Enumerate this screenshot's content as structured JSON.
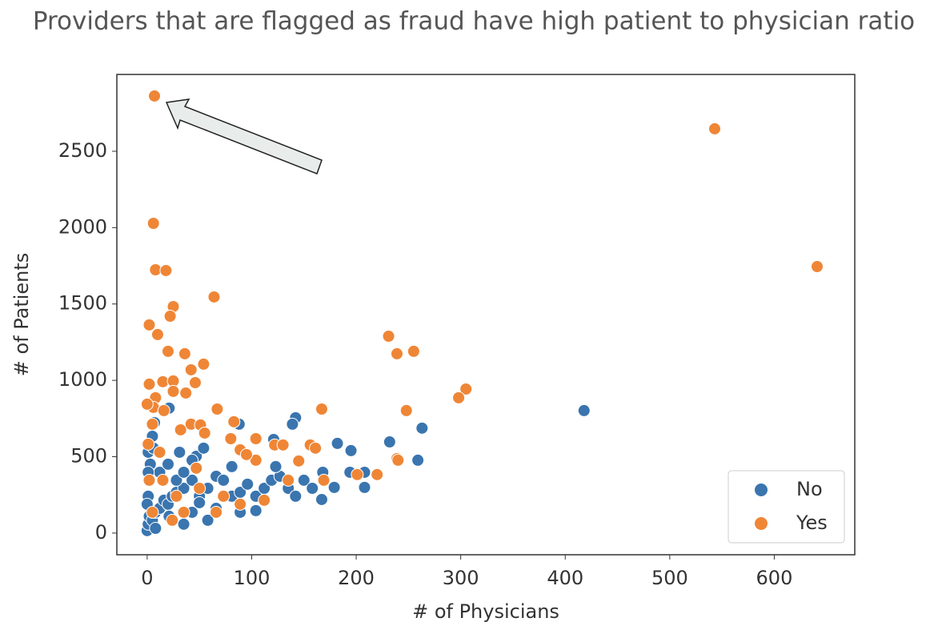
{
  "chart_data": {
    "type": "scatter",
    "title": "Providers that are flagged as fraud have high patient to physician ratio",
    "x_label": "# of Physicians",
    "y_label": "# of Patients",
    "xlim": [
      -29,
      677
    ],
    "ylim": [
      -142,
      3003
    ],
    "xticks": [
      0,
      100,
      200,
      300,
      400,
      500,
      600
    ],
    "yticks": [
      0,
      500,
      1000,
      1500,
      2000,
      2500
    ],
    "legend": "lower right",
    "series": [
      {
        "name": "No",
        "color": "#3a75af",
        "x": [
          418,
          263,
          259,
          232,
          88,
          142,
          139,
          121,
          182,
          195,
          7,
          21,
          208,
          179,
          167,
          194,
          168,
          208,
          47,
          31,
          1,
          5,
          0,
          1,
          2,
          5,
          8,
          12,
          16,
          20,
          24,
          28,
          35,
          43,
          50,
          58,
          66,
          73,
          81,
          89,
          96,
          104,
          112,
          119,
          127,
          135,
          142,
          150,
          158,
          1,
          2,
          3,
          6,
          12,
          20,
          28,
          35,
          43,
          54,
          21,
          43,
          66,
          89,
          104,
          58,
          35,
          8,
          50,
          123,
          81,
          1,
          0
        ],
        "values": [
          802,
          687,
          477,
          597,
          713,
          755,
          713,
          613,
          587,
          540,
          723,
          818,
          299,
          299,
          220,
          398,
          398,
          398,
          503,
          529,
          529,
          634,
          16,
          58,
          110,
          84,
          136,
          162,
          215,
          189,
          241,
          267,
          293,
          346,
          241,
          293,
          372,
          346,
          241,
          267,
          320,
          241,
          293,
          346,
          372,
          293,
          241,
          346,
          293,
          241,
          346,
          451,
          556,
          398,
          451,
          346,
          398,
          477,
          556,
          110,
          136,
          162,
          136,
          147,
          84,
          58,
          31,
          199,
          435,
          435,
          398,
          189
        ]
      },
      {
        "name": "Yes",
        "color": "#ef8636",
        "x": [
          7,
          543,
          641,
          6,
          8,
          18,
          64,
          25,
          22,
          2,
          10,
          20,
          36,
          42,
          54,
          231,
          239,
          255,
          305,
          298,
          248,
          167,
          67,
          2,
          15,
          25,
          25,
          46,
          37,
          8,
          6,
          16,
          0,
          42,
          32,
          51,
          55,
          83,
          80,
          104,
          89,
          104,
          95,
          122,
          130,
          156,
          161,
          145,
          201,
          220,
          239,
          240,
          2,
          1,
          5,
          12,
          15,
          28,
          50,
          66,
          89,
          112,
          135,
          169,
          47,
          73,
          35,
          24,
          5
        ],
        "values": [
          2862,
          2647,
          1745,
          2028,
          1724,
          1719,
          1546,
          1483,
          1420,
          1363,
          1300,
          1190,
          1174,
          1069,
          1106,
          1289,
          1174,
          1190,
          943,
          886,
          802,
          812,
          812,
          975,
          991,
          996,
          928,
          985,
          917,
          886,
          823,
          802,
          844,
          713,
          676,
          708,
          655,
          729,
          618,
          618,
          545,
          477,
          514,
          577,
          577,
          577,
          556,
          472,
          383,
          383,
          487,
          477,
          346,
          582,
          713,
          529,
          346,
          241,
          293,
          136,
          189,
          215,
          346,
          346,
          425,
          241,
          136,
          84,
          136
        ]
      }
    ]
  }
}
